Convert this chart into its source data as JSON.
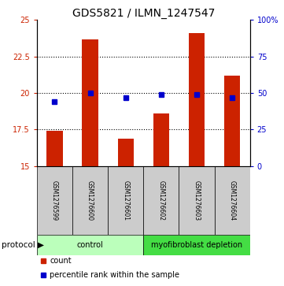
{
  "title": "GDS5821 / ILMN_1247547",
  "samples": [
    "GSM1276599",
    "GSM1276600",
    "GSM1276601",
    "GSM1276602",
    "GSM1276603",
    "GSM1276604"
  ],
  "bar_values": [
    17.4,
    23.7,
    16.9,
    18.6,
    24.1,
    21.2
  ],
  "bar_bottom": 15.0,
  "percentile_values": [
    44,
    50,
    47,
    49,
    49,
    47
  ],
  "ylim_left": [
    15,
    25
  ],
  "ylim_right": [
    0,
    100
  ],
  "yticks_left": [
    15,
    17.5,
    20,
    22.5,
    25
  ],
  "yticks_right": [
    0,
    25,
    50,
    75,
    100
  ],
  "ytick_labels_left": [
    "15",
    "17.5",
    "20",
    "22.5",
    "25"
  ],
  "ytick_labels_right": [
    "0",
    "25",
    "50",
    "75",
    "100%"
  ],
  "bar_color": "#cc2200",
  "dot_color": "#0000cc",
  "protocol_groups": [
    {
      "label": "control",
      "samples": [
        0,
        1,
        2
      ],
      "color": "#bbffbb"
    },
    {
      "label": "myofibroblast depletion",
      "samples": [
        3,
        4,
        5
      ],
      "color": "#44dd44"
    }
  ],
  "legend_items": [
    {
      "label": "count",
      "color": "#cc2200"
    },
    {
      "label": "percentile rank within the sample",
      "color": "#0000cc"
    }
  ],
  "background_color": "#ffffff",
  "sample_box_color": "#cccccc",
  "title_fontsize": 10,
  "tick_fontsize": 7,
  "label_fontsize": 5.5,
  "proto_fontsize": 7,
  "legend_fontsize": 7,
  "bar_width": 0.45
}
